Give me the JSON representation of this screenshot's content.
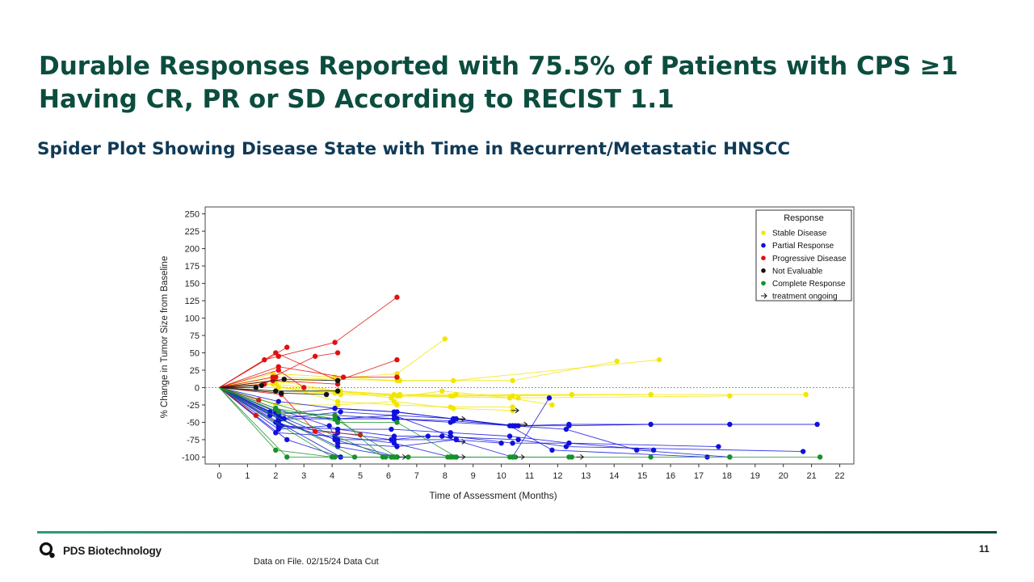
{
  "slide": {
    "title": "Durable Responses Reported with 75.5% of Patients with CPS ≥1 Having CR, PR or SD According to RECIST 1.1",
    "subtitle": "Spider Plot Showing Disease State with Time in Recurrent/Metastatic HNSCC",
    "page_number": "11",
    "source_note": "Data on File. 02/15/24 Data Cut",
    "brand": "PDS Biotechnology",
    "brand_color": "#0b4d3e",
    "rule_colors": [
      "#2f9a7a",
      "#0b4d3e"
    ]
  },
  "chart_data": {
    "type": "line",
    "title": "",
    "xlabel": "Time of Assessment (Months)",
    "ylabel": "% Change in Tumor Size from Baseline",
    "xlim": [
      -0.5,
      22.5
    ],
    "ylim": [
      -110,
      260
    ],
    "x_ticks": [
      0,
      1,
      2,
      3,
      4,
      5,
      6,
      7,
      8,
      9,
      10,
      11,
      12,
      13,
      14,
      15,
      16,
      17,
      18,
      19,
      20,
      21,
      22
    ],
    "y_ticks": [
      -100,
      -75,
      -50,
      -25,
      0,
      25,
      50,
      75,
      100,
      125,
      150,
      175,
      200,
      225,
      250
    ],
    "reference_line": 0,
    "legend": {
      "title": "Response",
      "position": "top-right",
      "entries": [
        {
          "label": "Stable Disease",
          "color": "#f2e600",
          "marker": "dot"
        },
        {
          "label": "Partial Response",
          "color": "#1010dd",
          "marker": "dot"
        },
        {
          "label": "Progressive Disease",
          "color": "#e01010",
          "marker": "dot"
        },
        {
          "label": "Not Evaluable",
          "color": "#111111",
          "marker": "dot"
        },
        {
          "label": "Complete Response",
          "color": "#16922a",
          "marker": "dot"
        },
        {
          "label": "treatment ongoing",
          "color": "#111111",
          "marker": "arrow"
        }
      ]
    },
    "categories": {
      "Stable Disease": "#f2e600",
      "Partial Response": "#1010dd",
      "Progressive Disease": "#e01010",
      "Not Evaluable": "#111111",
      "Complete Response": "#16922a"
    },
    "series": [
      {
        "category": "Stable Disease",
        "x": [
          0,
          1.9,
          4.1,
          6.3,
          10.4,
          14.1
        ],
        "y": [
          0,
          20,
          15,
          10,
          10,
          38
        ]
      },
      {
        "category": "Stable Disease",
        "x": [
          0,
          2.0,
          4.2,
          6.4,
          8.3,
          15.6
        ],
        "y": [
          0,
          15,
          12,
          10,
          10,
          40
        ]
      },
      {
        "category": "Stable Disease",
        "x": [
          0,
          2.0,
          4.2,
          6.4,
          8.3,
          12.5
        ],
        "y": [
          0,
          5,
          -5,
          -10,
          -12,
          -10
        ]
      },
      {
        "category": "Stable Disease",
        "x": [
          0,
          2.1,
          4.3,
          6.3,
          8.2,
          10.4,
          15.3
        ],
        "y": [
          0,
          0,
          -5,
          -12,
          -12,
          -12,
          -10
        ]
      },
      {
        "category": "Stable Disease",
        "x": [
          0,
          2.0,
          4.2,
          6.1,
          7.9,
          10.3,
          11.8
        ],
        "y": [
          0,
          10,
          -5,
          -15,
          -5,
          -15,
          -25
        ]
      },
      {
        "category": "Stable Disease",
        "x": [
          0,
          2.1,
          4.3,
          6.4,
          10.6,
          18.1
        ],
        "y": [
          0,
          0,
          -10,
          -12,
          -15,
          -12
        ]
      },
      {
        "category": "Stable Disease",
        "x": [
          0,
          2.0,
          4.1,
          6.2,
          8.4,
          20.8
        ],
        "y": [
          0,
          -5,
          -8,
          -10,
          -10,
          -10
        ]
      },
      {
        "category": "Stable Disease",
        "x": [
          0,
          1.9,
          4.2,
          6.3,
          8.2,
          10.4
        ],
        "y": [
          0,
          5,
          -20,
          -25,
          -28,
          -28
        ]
      },
      {
        "category": "Stable Disease",
        "x": [
          0,
          2.0,
          4.2,
          6.2,
          8.3,
          10.4
        ],
        "y": [
          0,
          -25,
          -25,
          -20,
          -30,
          -33
        ]
      },
      {
        "category": "Stable Disease",
        "x": [
          0,
          6.3,
          8.0
        ],
        "y": [
          0,
          20,
          70
        ]
      },
      {
        "category": "Partial Response",
        "x": [
          0,
          2.1,
          4.1,
          6.2,
          8.3,
          10.5,
          12.4,
          15.3,
          21.2
        ],
        "y": [
          0,
          -20,
          -30,
          -35,
          -45,
          -55,
          -55,
          -53,
          -53
        ]
      },
      {
        "category": "Partial Response",
        "x": [
          0,
          2.1,
          4.2,
          6.2,
          8.2,
          10.4,
          12.3,
          14.8,
          18.1
        ],
        "y": [
          0,
          -40,
          -45,
          -45,
          -50,
          -55,
          -60,
          -90,
          -100
        ]
      },
      {
        "category": "Partial Response",
        "x": [
          0,
          2.0,
          4.1,
          6.3,
          8.3,
          10.6,
          12.4,
          18.1
        ],
        "y": [
          0,
          -35,
          -40,
          -45,
          -48,
          -55,
          -53,
          -53
        ]
      },
      {
        "category": "Partial Response",
        "x": [
          0,
          2.0,
          4.2,
          6.2,
          7.9,
          10.4,
          11.7
        ],
        "y": [
          0,
          -30,
          -60,
          -70,
          -70,
          -100,
          -15
        ]
      },
      {
        "category": "Partial Response",
        "x": [
          0,
          2.2,
          4.2,
          6.1,
          8.2,
          10.3,
          12.4,
          17.7
        ],
        "y": [
          0,
          -55,
          -60,
          -60,
          -65,
          -70,
          -80,
          -85
        ]
      },
      {
        "category": "Partial Response",
        "x": [
          0,
          1.8,
          4.1,
          6.3,
          8.3,
          10.3,
          11.8,
          17.3
        ],
        "y": [
          0,
          -40,
          -30,
          -35,
          -45,
          -55,
          -90,
          -100
        ]
      },
      {
        "category": "Partial Response",
        "x": [
          0,
          2.1,
          4.3,
          6.2,
          8.2,
          10.4,
          12.4,
          15.4
        ],
        "y": [
          0,
          -45,
          -35,
          -40,
          -70,
          -80,
          -80,
          -90
        ]
      },
      {
        "category": "Partial Response",
        "x": [
          0,
          2.1,
          4.2,
          6.1,
          7.4,
          10.6,
          12.3,
          20.7
        ],
        "y": [
          0,
          -55,
          -65,
          -75,
          -70,
          -75,
          -85,
          -92
        ]
      },
      {
        "category": "Partial Response",
        "x": [
          0,
          2.0,
          4.2,
          6.2,
          8.4,
          10.0
        ],
        "y": [
          0,
          -50,
          -75,
          -75,
          -75,
          -80
        ]
      },
      {
        "category": "Partial Response",
        "x": [
          0,
          2.1,
          3.9,
          4.2,
          6.3,
          8.4
        ],
        "y": [
          0,
          -60,
          -55,
          -80,
          -85,
          -75
        ]
      },
      {
        "category": "Partial Response",
        "x": [
          0,
          2.0,
          4.1,
          6.2,
          8.2
        ],
        "y": [
          0,
          -65,
          -70,
          -80,
          -100
        ]
      },
      {
        "category": "Partial Response",
        "x": [
          0,
          2.4,
          4.3,
          6.2
        ],
        "y": [
          0,
          -75,
          -100,
          -100
        ]
      },
      {
        "category": "Partial Response",
        "x": [
          0,
          1.8,
          4.1,
          6.3,
          8.4
        ],
        "y": [
          0,
          -35,
          -75,
          -100,
          -100
        ]
      },
      {
        "category": "Partial Response",
        "x": [
          0,
          2.2,
          4.2,
          6.3
        ],
        "y": [
          0,
          -45,
          -85,
          -100
        ]
      },
      {
        "category": "Partial Response",
        "x": [
          0,
          2.1,
          4.3
        ],
        "y": [
          0,
          -50,
          -100
        ]
      },
      {
        "category": "Partial Response",
        "x": [
          0,
          2.3,
          4.2,
          6.2,
          8.4,
          10.4
        ],
        "y": [
          0,
          -45,
          -45,
          -40,
          -45,
          -55
        ]
      },
      {
        "category": "Progressive Disease",
        "x": [
          0,
          1.6,
          2.1,
          4.1,
          6.3
        ],
        "y": [
          0,
          40,
          45,
          65,
          130
        ]
      },
      {
        "category": "Progressive Disease",
        "x": [
          0,
          1.9,
          3.4,
          4.2
        ],
        "y": [
          0,
          15,
          45,
          50
        ]
      },
      {
        "category": "Progressive Disease",
        "x": [
          0,
          2.0,
          4.2,
          6.3
        ],
        "y": [
          0,
          50,
          10,
          40
        ]
      },
      {
        "category": "Progressive Disease",
        "x": [
          0,
          2.4
        ],
        "y": [
          0,
          58
        ]
      },
      {
        "category": "Progressive Disease",
        "x": [
          0,
          2.1,
          4.4,
          6.3
        ],
        "y": [
          0,
          30,
          15,
          15
        ]
      },
      {
        "category": "Progressive Disease",
        "x": [
          0,
          1.9,
          4.2
        ],
        "y": [
          0,
          10,
          5
        ]
      },
      {
        "category": "Progressive Disease",
        "x": [
          0,
          1.6,
          2.0
        ],
        "y": [
          0,
          5,
          15
        ]
      },
      {
        "category": "Progressive Disease",
        "x": [
          0,
          2.1,
          3.0
        ],
        "y": [
          0,
          25,
          0
        ]
      },
      {
        "category": "Progressive Disease",
        "x": [
          0,
          1.4
        ],
        "y": [
          0,
          -18
        ]
      },
      {
        "category": "Progressive Disease",
        "x": [
          0,
          1.3
        ],
        "y": [
          0,
          -40
        ]
      },
      {
        "category": "Progressive Disease",
        "x": [
          0,
          2.2,
          3.4,
          5.0
        ],
        "y": [
          0,
          -10,
          -63,
          -68
        ]
      },
      {
        "category": "Not Evaluable",
        "x": [
          0,
          1.3
        ],
        "y": [
          0,
          0
        ]
      },
      {
        "category": "Not Evaluable",
        "x": [
          0,
          1.5
        ],
        "y": [
          0,
          3
        ]
      },
      {
        "category": "Not Evaluable",
        "x": [
          0,
          2.3,
          4.2
        ],
        "y": [
          0,
          12,
          10
        ]
      },
      {
        "category": "Not Evaluable",
        "x": [
          0,
          2.2,
          3.8
        ],
        "y": [
          0,
          -8,
          -10
        ]
      },
      {
        "category": "Not Evaluable",
        "x": [
          0,
          2.0,
          4.2
        ],
        "y": [
          0,
          -5,
          -5
        ]
      },
      {
        "category": "Complete Response",
        "x": [
          0,
          2.0,
          4.0,
          6.1,
          8.2,
          10.3,
          12.4
        ],
        "y": [
          0,
          -90,
          -100,
          -100,
          -100,
          -100,
          -100
        ]
      },
      {
        "category": "Complete Response",
        "x": [
          0,
          2.4,
          4.1,
          6.3,
          8.3,
          10.5,
          12.5,
          15.3,
          18.1,
          21.3
        ],
        "y": [
          0,
          -100,
          -100,
          -100,
          -100,
          -100,
          -100,
          -100,
          -100,
          -100
        ]
      },
      {
        "category": "Complete Response",
        "x": [
          0,
          2.1,
          4.1,
          5.8,
          6.7,
          8.1
        ],
        "y": [
          0,
          -35,
          -40,
          -100,
          -100,
          -100
        ]
      },
      {
        "category": "Complete Response",
        "x": [
          0,
          4.2,
          6.3,
          8.4
        ],
        "y": [
          0,
          -50,
          -50,
          -100
        ]
      },
      {
        "category": "Complete Response",
        "x": [
          0,
          4.8,
          6.1
        ],
        "y": [
          0,
          -100,
          -100
        ]
      },
      {
        "category": "Complete Response",
        "x": [
          0,
          2.0,
          4.1,
          6.3
        ],
        "y": [
          0,
          -30,
          -45,
          -100
        ]
      },
      {
        "category": "Complete Response",
        "x": [
          0,
          4.0,
          6.3,
          8.2,
          10.4
        ],
        "y": [
          0,
          -100,
          -100,
          -100,
          -100
        ]
      },
      {
        "category": "Complete Response",
        "x": [
          0,
          5.9,
          6.2
        ],
        "y": [
          0,
          -100,
          -100
        ]
      }
    ],
    "ongoing_arrows": [
      {
        "x": 8.6,
        "y": -45
      },
      {
        "x": 10.8,
        "y": -53
      },
      {
        "x": 10.5,
        "y": -33
      },
      {
        "x": 8.6,
        "y": -78
      },
      {
        "x": 8.6,
        "y": -100
      },
      {
        "x": 12.8,
        "y": -100
      },
      {
        "x": 6.5,
        "y": -100
      },
      {
        "x": 10.7,
        "y": -100
      }
    ]
  }
}
